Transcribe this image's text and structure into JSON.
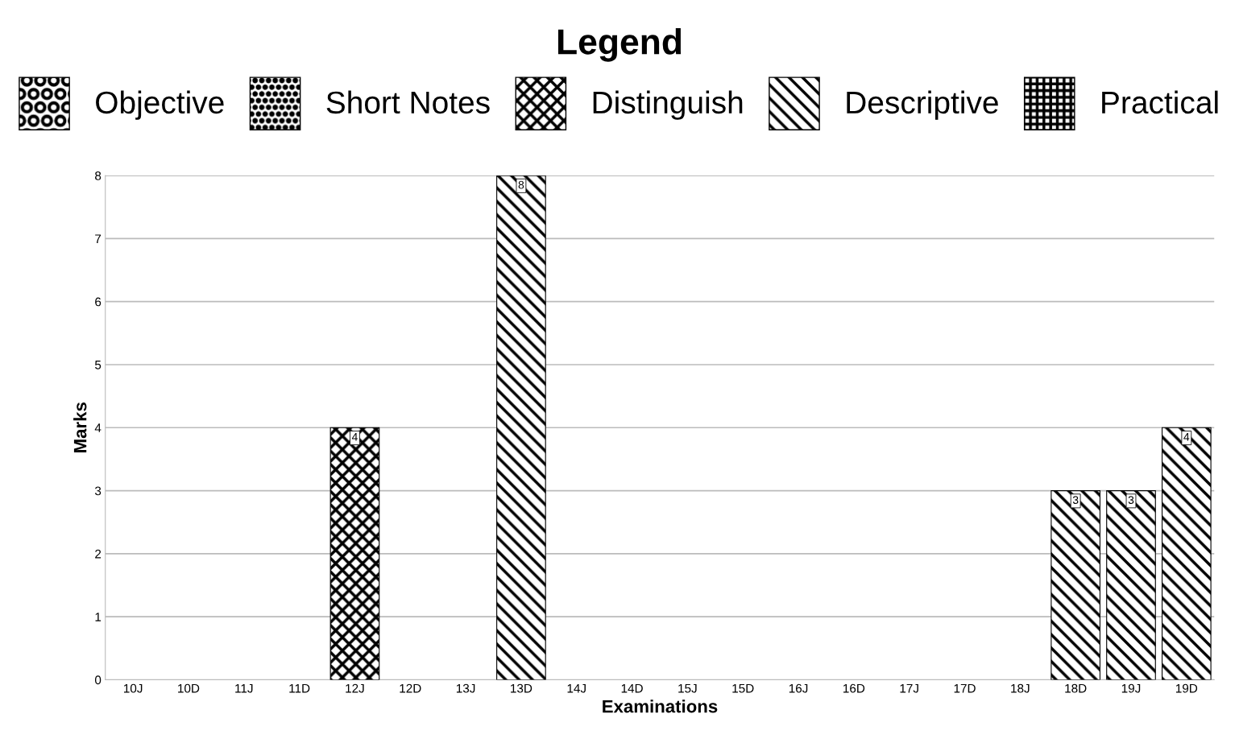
{
  "chart_data": {
    "type": "bar",
    "xlabel": "Examinations",
    "ylabel": "Marks",
    "legend_title": "Legend",
    "legend": "top",
    "grid": "y",
    "categories": [
      "10J",
      "10D",
      "11J",
      "11D",
      "12J",
      "12D",
      "13J",
      "13D",
      "14J",
      "14D",
      "15J",
      "15D",
      "16J",
      "16D",
      "17J",
      "17D",
      "18J",
      "18D",
      "19J",
      "19D"
    ],
    "ylim": [
      0,
      8
    ],
    "yticks": [
      0,
      1,
      2,
      3,
      4,
      5,
      6,
      7,
      8
    ],
    "series": [
      {
        "name": "Objective",
        "color": "#000000",
        "values": [
          0,
          0,
          0,
          0,
          0,
          0,
          0,
          0,
          0,
          0,
          0,
          0,
          0,
          0,
          0,
          0,
          0,
          0,
          0,
          0
        ],
        "value_labels": [
          null,
          null,
          null,
          null,
          null,
          null,
          null,
          null,
          null,
          null,
          null,
          null,
          null,
          null,
          null,
          null,
          null,
          null,
          null,
          null
        ]
      },
      {
        "name": "Short Notes",
        "color": "#000000",
        "values": [
          0,
          0,
          0,
          0,
          0,
          0,
          0,
          0,
          0,
          0,
          0,
          0,
          0,
          0,
          0,
          0,
          0,
          0,
          0,
          0
        ],
        "value_labels": [
          null,
          null,
          null,
          null,
          null,
          null,
          null,
          null,
          null,
          null,
          null,
          null,
          null,
          null,
          null,
          null,
          null,
          null,
          null,
          null
        ]
      },
      {
        "name": "Distinguish",
        "color": "#000000",
        "values": [
          0,
          0,
          0,
          0,
          4,
          0,
          0,
          0,
          0,
          0,
          0,
          0,
          0,
          0,
          0,
          0,
          0,
          0,
          0,
          0
        ],
        "value_labels": [
          null,
          null,
          null,
          null,
          "4",
          null,
          null,
          null,
          null,
          null,
          null,
          null,
          null,
          null,
          null,
          null,
          null,
          null,
          null,
          null
        ]
      },
      {
        "name": "Descriptive",
        "color": "#000000",
        "values": [
          0,
          0,
          0,
          0,
          0,
          0,
          0,
          8,
          0,
          0,
          0,
          0,
          0,
          0,
          0,
          0,
          0,
          3,
          3,
          4
        ],
        "value_labels": [
          null,
          null,
          null,
          null,
          null,
          null,
          null,
          "8",
          null,
          null,
          null,
          null,
          null,
          null,
          null,
          null,
          null,
          "3",
          "3",
          "4"
        ]
      },
      {
        "name": "Practical",
        "color": "#000000",
        "values": [
          0,
          0,
          0,
          0,
          0,
          0,
          0,
          0,
          0,
          0,
          0,
          0,
          0,
          0,
          0,
          0,
          0,
          0,
          0,
          0
        ],
        "value_labels": [
          null,
          null,
          null,
          null,
          null,
          null,
          null,
          null,
          null,
          null,
          null,
          null,
          null,
          null,
          null,
          null,
          null,
          null,
          null,
          null
        ]
      }
    ]
  }
}
